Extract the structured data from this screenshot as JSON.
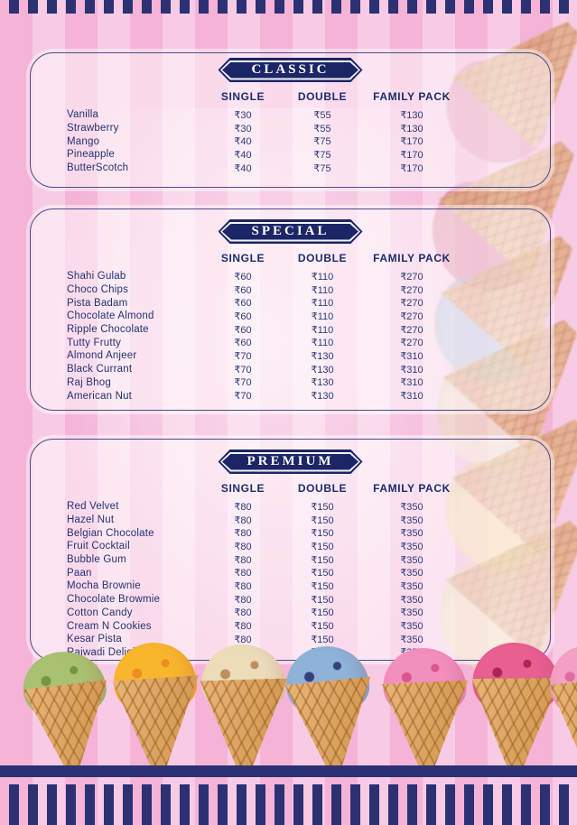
{
  "currency": "₹",
  "columns": [
    "SINGLE",
    "DOUBLE",
    "FAMILY PACK"
  ],
  "sections": [
    {
      "title": "CLASSIC",
      "items": [
        [
          "Vanilla",
          "₹30",
          "₹55",
          "₹130"
        ],
        [
          "Strawberry",
          "₹30",
          "₹55",
          "₹130"
        ],
        [
          "Mango",
          "₹40",
          "₹75",
          "₹170"
        ],
        [
          "Pineapple",
          "₹40",
          "₹75",
          "₹170"
        ],
        [
          "ButterScotch",
          "₹40",
          "₹75",
          "₹170"
        ]
      ]
    },
    {
      "title": "SPECIAL",
      "items": [
        [
          "Shahi Gulab",
          "₹60",
          "₹110",
          "₹270"
        ],
        [
          "Choco Chips",
          "₹60",
          "₹110",
          "₹270"
        ],
        [
          "Pista Badam",
          "₹60",
          "₹110",
          "₹270"
        ],
        [
          "Chocolate Almond",
          "₹60",
          "₹110",
          "₹270"
        ],
        [
          "Ripple Chocolate",
          "₹60",
          "₹110",
          "₹270"
        ],
        [
          "Tutty Frutty",
          "₹60",
          "₹110",
          "₹270"
        ],
        [
          "Almond Anjeer",
          "₹70",
          "₹130",
          "₹310"
        ],
        [
          "Black Currant",
          "₹70",
          "₹130",
          "₹310"
        ],
        [
          "Raj Bhog",
          "₹70",
          "₹130",
          "₹310"
        ],
        [
          "American Nut",
          "₹70",
          "₹130",
          "₹310"
        ]
      ]
    },
    {
      "title": "PREMIUM",
      "items": [
        [
          "Red Velvet",
          "₹80",
          "₹150",
          "₹350"
        ],
        [
          "Hazel Nut",
          "₹80",
          "₹150",
          "₹350"
        ],
        [
          "Belgian Chocolate",
          "₹80",
          "₹150",
          "₹350"
        ],
        [
          "Fruit Cocktail",
          "₹80",
          "₹150",
          "₹350"
        ],
        [
          "Bubble Gum",
          "₹80",
          "₹150",
          "₹350"
        ],
        [
          "Paan",
          "₹80",
          "₹150",
          "₹350"
        ],
        [
          "Mocha Brownie",
          "₹80",
          "₹150",
          "₹350"
        ],
        [
          "Chocolate Browmie",
          "₹80",
          "₹150",
          "₹350"
        ],
        [
          "Cotton Candy",
          "₹80",
          "₹150",
          "₹350"
        ],
        [
          "Cream N Cookies",
          "₹80",
          "₹150",
          "₹350"
        ],
        [
          "Kesar Pista",
          "₹80",
          "₹150",
          "₹350"
        ],
        [
          "Rajwadi Delight",
          "₹80",
          "₹150",
          "₹350"
        ]
      ]
    }
  ],
  "theme": {
    "navy": "#2b3173",
    "badge_navy": "#1c2566",
    "text_navy": "#233270",
    "stripe_pink_dark": "#f4b3d7",
    "stripe_pink_light": "#f8cbe4",
    "panel_border": "#4c4b86",
    "cone_tan": "#dfa765"
  },
  "decorations": {
    "bottom_cones": [
      {
        "name": "pistachio",
        "scoop": "#a9c271",
        "fleck": "#73963f"
      },
      {
        "name": "mango-orange",
        "scoop": "#f8b62d",
        "fleck": "#ef8d1f"
      },
      {
        "name": "butterscotch-cream",
        "scoop": "#ecdcba",
        "fleck": "#bb905b"
      },
      {
        "name": "blueberry",
        "scoop": "#8fb2d8",
        "fleck": "#33407a"
      },
      {
        "name": "strawberry-pink",
        "scoop": "#f38fbd",
        "fleck": "#d9568f"
      },
      {
        "name": "raspberry",
        "scoop": "#e85f92",
        "fleck": "#b02355"
      },
      {
        "name": "pink-partial",
        "scoop": "#f2a0c4",
        "fleck": "#e06ba3"
      }
    ],
    "side_cones": [
      {
        "name": "rose",
        "scoop": "#e088a8"
      },
      {
        "name": "berry-red",
        "scoop": "#d96e8e"
      },
      {
        "name": "sky-blue",
        "scoop": "#a6c4de"
      },
      {
        "name": "vanilla-cream",
        "scoop": "#eedfc2"
      },
      {
        "name": "lemon-yellow",
        "scoop": "#f2dd90"
      },
      {
        "name": "pale-yellow",
        "scoop": "#efe3a9"
      }
    ]
  }
}
